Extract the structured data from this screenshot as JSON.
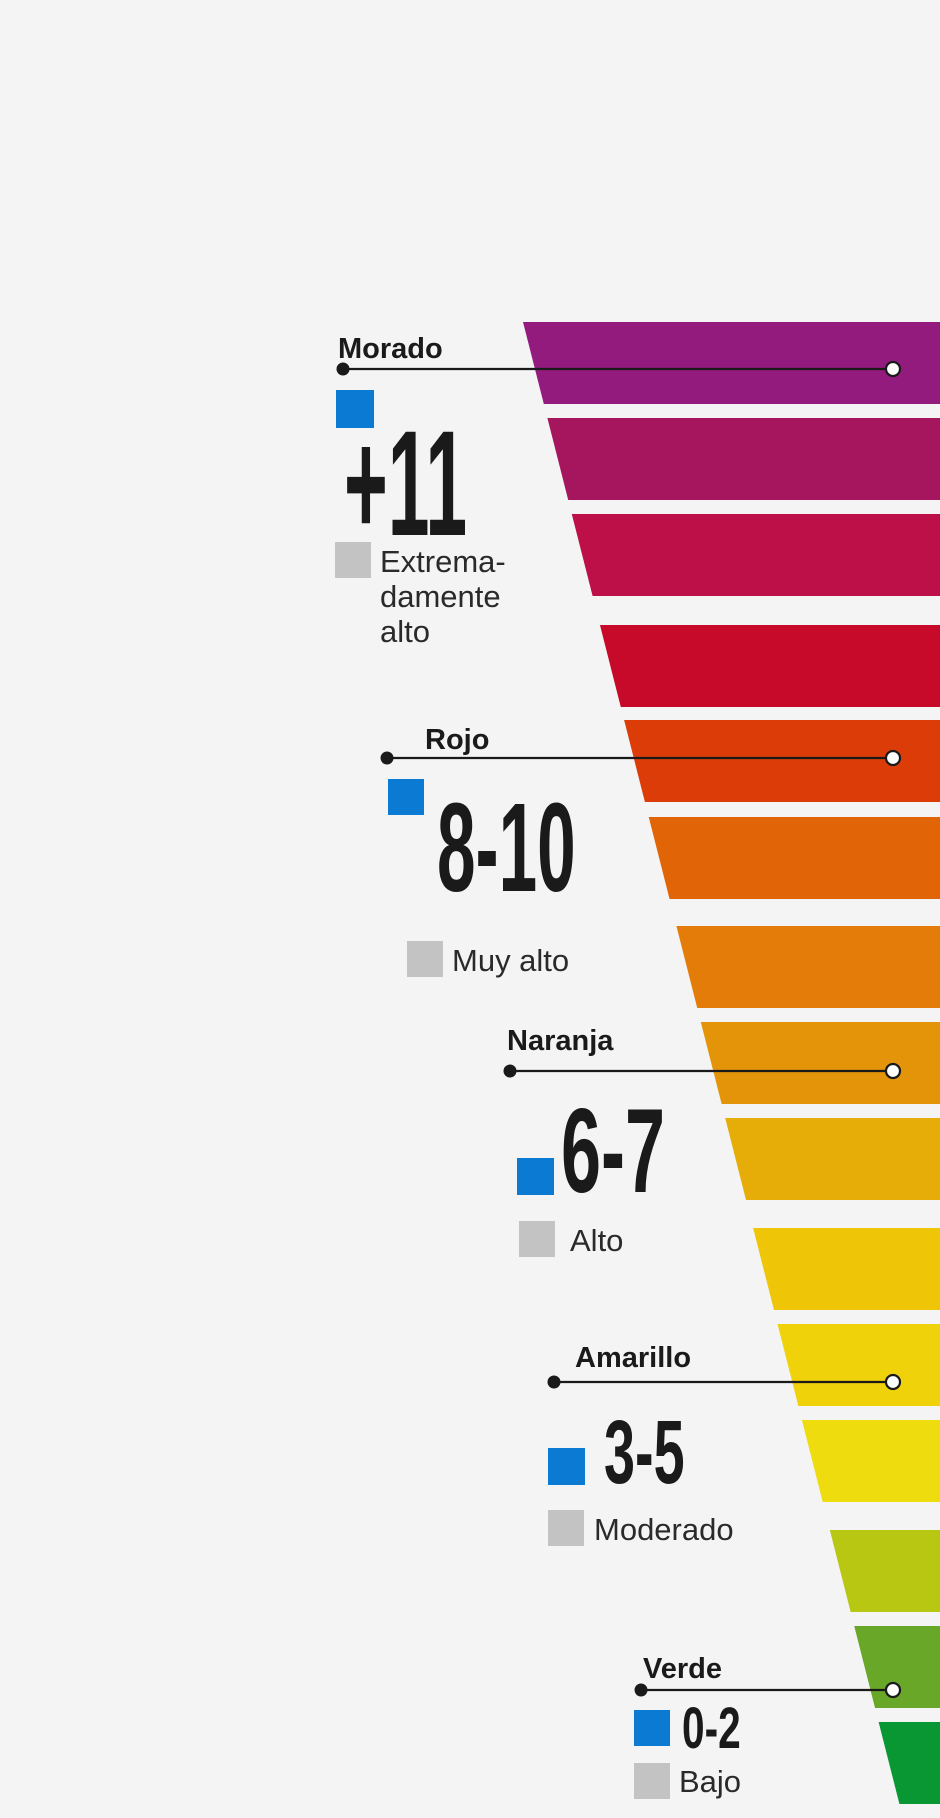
{
  "levels": [
    {
      "color_name": "Morado",
      "range": "+11",
      "description": [
        "Extrema-",
        "damente",
        "alto"
      ],
      "accent": "#8e1c7e"
    },
    {
      "color_name": "Rojo",
      "range": "8-10",
      "description": [
        "Muy alto"
      ],
      "accent": "#dd3c09"
    },
    {
      "color_name": "Naranja",
      "range": "6-7",
      "description": [
        "Alto"
      ],
      "accent": "#e39505"
    },
    {
      "color_name": "Amarillo",
      "range": "3-5",
      "description": [
        "Moderado"
      ],
      "accent": "#f0cf06"
    },
    {
      "color_name": "Verde",
      "range": "0-2",
      "description": [
        "Bajo"
      ],
      "accent": "#2f9a2e"
    }
  ],
  "band_colors": [
    "#931b7d",
    "#a5165f",
    "#bd1048",
    "#c70a2a",
    "#dc3c08",
    "#e16506",
    "#e47c09",
    "#e39408",
    "#e6ac08",
    "#efc508",
    "#f0d20a",
    "#eedc0e",
    "#b8c712",
    "#69a728",
    "#099734"
  ],
  "marker_colors": {
    "blue_square": "#0a7ad3",
    "gray_square": "#c3c3c3",
    "line": "#1a1a1a"
  }
}
